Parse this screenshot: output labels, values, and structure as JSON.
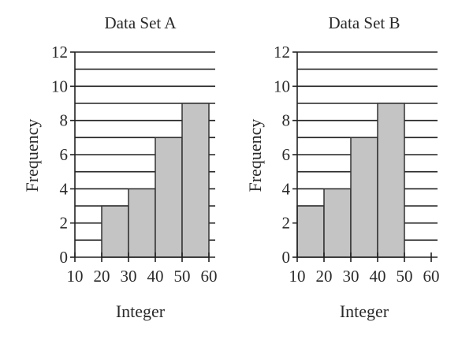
{
  "chart_data": [
    {
      "type": "bar",
      "title": "Data Set A",
      "xlabel": "Integer",
      "ylabel": "Frequency",
      "x_ticks": [
        "10",
        "20",
        "30",
        "40",
        "50",
        "60"
      ],
      "y_ticks": [
        "0",
        "2",
        "4",
        "6",
        "8",
        "10",
        "12"
      ],
      "xlim": [
        10,
        60
      ],
      "ylim": [
        0,
        12
      ],
      "grid": true,
      "bins": [
        {
          "start": 20,
          "end": 30,
          "value": 3
        },
        {
          "start": 30,
          "end": 40,
          "value": 4
        },
        {
          "start": 40,
          "end": 50,
          "value": 7
        },
        {
          "start": 50,
          "end": 60,
          "value": 9
        }
      ]
    },
    {
      "type": "bar",
      "title": "Data Set B",
      "xlabel": "Integer",
      "ylabel": "Frequency",
      "x_ticks": [
        "10",
        "20",
        "30",
        "40",
        "50",
        "60"
      ],
      "y_ticks": [
        "0",
        "2",
        "4",
        "6",
        "8",
        "10",
        "12"
      ],
      "xlim": [
        10,
        60
      ],
      "ylim": [
        0,
        12
      ],
      "grid": true,
      "bins": [
        {
          "start": 10,
          "end": 20,
          "value": 3
        },
        {
          "start": 20,
          "end": 30,
          "value": 4
        },
        {
          "start": 30,
          "end": 40,
          "value": 7
        },
        {
          "start": 40,
          "end": 50,
          "value": 9
        }
      ]
    }
  ]
}
